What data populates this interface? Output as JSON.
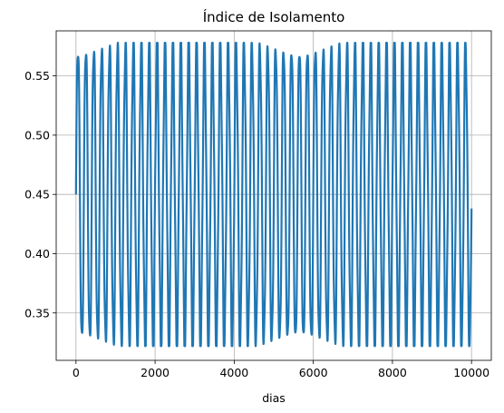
{
  "chart_data": {
    "type": "line",
    "title": "Índice de Isolamento",
    "xlabel": "dias",
    "ylabel": "",
    "xlim": [
      -500,
      10500
    ],
    "ylim": [
      0.31,
      0.588
    ],
    "xticks": [
      0,
      2000,
      4000,
      6000,
      8000,
      10000
    ],
    "xtick_labels": [
      "0",
      "2000",
      "4000",
      "6000",
      "8000",
      "10000"
    ],
    "yticks": [
      0.35,
      0.4,
      0.45,
      0.5,
      0.55
    ],
    "ytick_labels": [
      "0.35",
      "0.40",
      "0.45",
      "0.50",
      "0.55"
    ],
    "grid": true,
    "series": [
      {
        "color": "#1f77b4",
        "x_range": [
          0,
          10000
        ],
        "center": 0.45,
        "amplitude": 0.128,
        "period_days": 200,
        "min": 0.322,
        "max": 0.578,
        "description_values": "oscillating signal between ~0.322 and ~0.578 around 0.45"
      }
    ]
  }
}
